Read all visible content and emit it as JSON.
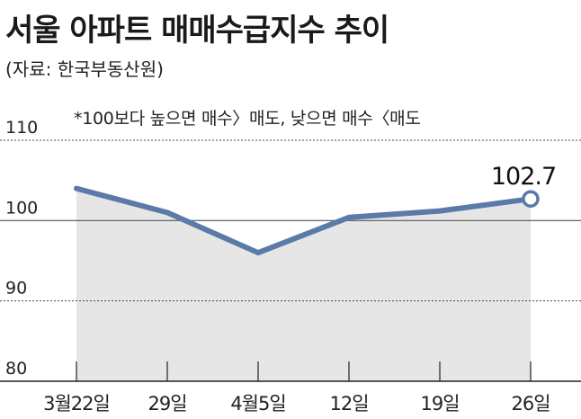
{
  "title": "서울 아파트 매매수급지수 추이",
  "source": "(자료: 한국부동산원)",
  "note": "*100보다 높으면 매수〉매도, 낮으면 매수〈매도",
  "chart_data": {
    "type": "area",
    "categories": [
      "3월22일",
      "29일",
      "4월5일",
      "12일",
      "19일",
      "26일"
    ],
    "values": [
      104.0,
      101.0,
      96.0,
      100.4,
      101.2,
      102.7
    ],
    "ylim": [
      80,
      110
    ],
    "yticks": [
      110,
      100,
      90,
      80
    ],
    "highlight_label": "102.7",
    "grid": true,
    "colors": {
      "line": "#5a7aa8",
      "fill": "#e6e6e6",
      "grid": "#444444",
      "axis": "#222222"
    }
  }
}
